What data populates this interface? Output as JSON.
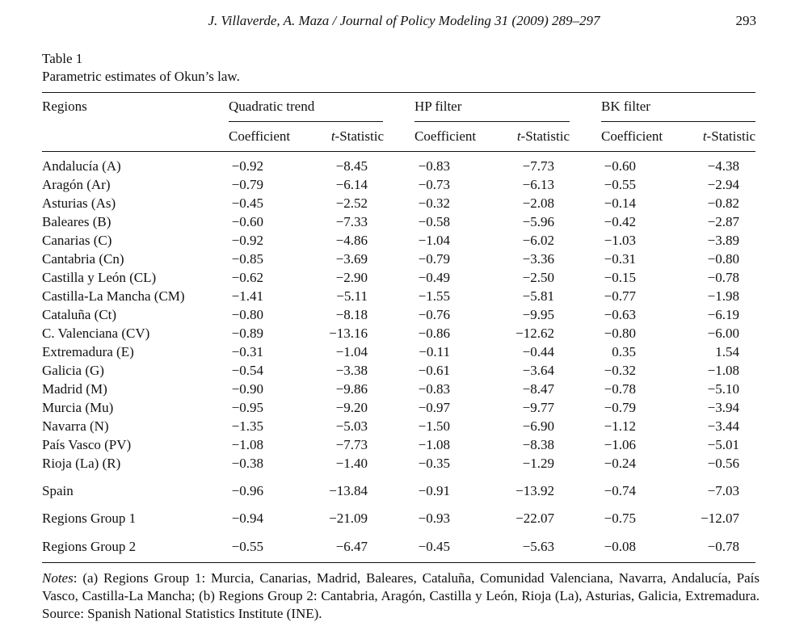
{
  "running_head": {
    "journal": "J. Villaverde, A. Maza / Journal of Policy Modeling 31 (2009) 289–297",
    "page_number": "293"
  },
  "table": {
    "label": "Table 1",
    "title": "Parametric estimates of Okun’s law.",
    "stub_header": "Regions",
    "groups": [
      "Quadratic trend",
      "HP filter",
      "BK filter"
    ],
    "subheaders": {
      "coefficient": "Coefficient",
      "t_prefix": "t",
      "t_suffix": "-Statistic"
    },
    "rows": [
      {
        "region": "Andalucía (A)",
        "values": [
          "−0.92",
          "−8.45",
          "−0.83",
          "−7.73",
          "−0.60",
          "−4.38"
        ]
      },
      {
        "region": "Aragón (Ar)",
        "values": [
          "−0.79",
          "−6.14",
          "−0.73",
          "−6.13",
          "−0.55",
          "−2.94"
        ]
      },
      {
        "region": "Asturias (As)",
        "values": [
          "−0.45",
          "−2.52",
          "−0.32",
          "−2.08",
          "−0.14",
          "−0.82"
        ]
      },
      {
        "region": "Baleares (B)",
        "values": [
          "−0.60",
          "−7.33",
          "−0.58",
          "−5.96",
          "−0.42",
          "−2.87"
        ]
      },
      {
        "region": "Canarias (C)",
        "values": [
          "−0.92",
          "−4.86",
          "−1.04",
          "−6.02",
          "−1.03",
          "−3.89"
        ]
      },
      {
        "region": "Cantabria (Cn)",
        "values": [
          "−0.85",
          "−3.69",
          "−0.79",
          "−3.36",
          "−0.31",
          "−0.80"
        ]
      },
      {
        "region": "Castilla y León (CL)",
        "values": [
          "−0.62",
          "−2.90",
          "−0.49",
          "−2.50",
          "−0.15",
          "−0.78"
        ]
      },
      {
        "region": "Castilla-La Mancha (CM)",
        "values": [
          "−1.41",
          "−5.11",
          "−1.55",
          "−5.81",
          "−0.77",
          "−1.98"
        ]
      },
      {
        "region": "Cataluña (Ct)",
        "values": [
          "−0.80",
          "−8.18",
          "−0.76",
          "−9.95",
          "−0.63",
          "−6.19"
        ]
      },
      {
        "region": "C. Valenciana (CV)",
        "values": [
          "−0.89",
          "−13.16",
          "−0.86",
          "−12.62",
          "−0.80",
          "−6.00"
        ]
      },
      {
        "region": "Extremadura (E)",
        "values": [
          "−0.31",
          "−1.04",
          "−0.11",
          "−0.44",
          "0.35",
          "1.54"
        ]
      },
      {
        "region": "Galicia (G)",
        "values": [
          "−0.54",
          "−3.38",
          "−0.61",
          "−3.64",
          "−0.32",
          "−1.08"
        ]
      },
      {
        "region": "Madrid (M)",
        "values": [
          "−0.90",
          "−9.86",
          "−0.83",
          "−8.47",
          "−0.78",
          "−5.10"
        ]
      },
      {
        "region": "Murcia (Mu)",
        "values": [
          "−0.95",
          "−9.20",
          "−0.97",
          "−9.77",
          "−0.79",
          "−3.94"
        ]
      },
      {
        "region": "Navarra (N)",
        "values": [
          "−1.35",
          "−5.03",
          "−1.50",
          "−6.90",
          "−1.12",
          "−3.44"
        ]
      },
      {
        "region": "País Vasco (PV)",
        "values": [
          "−1.08",
          "−7.73",
          "−1.08",
          "−8.38",
          "−1.06",
          "−5.01"
        ]
      },
      {
        "region": "Rioja (La) (R)",
        "values": [
          "−0.38",
          "−1.40",
          "−0.35",
          "−1.29",
          "−0.24",
          "−0.56"
        ]
      },
      {
        "region": "Spain",
        "values": [
          "−0.96",
          "−13.84",
          "−0.91",
          "−13.92",
          "−0.74",
          "−7.03"
        ]
      },
      {
        "region": "Regions Group 1",
        "values": [
          "−0.94",
          "−21.09",
          "−0.93",
          "−22.07",
          "−0.75",
          "−12.07"
        ]
      },
      {
        "region": "Regions Group 2",
        "values": [
          "−0.55",
          "−6.47",
          "−0.45",
          "−5.63",
          "−0.08",
          "−0.78"
        ]
      }
    ]
  },
  "notes": {
    "label": "Notes",
    "text": ": (a) Regions Group 1: Murcia, Canarias, Madrid, Baleares, Cataluña, Comunidad Valenciana, Navarra, Andalucía, País Vasco, Castilla-La Mancha; (b) Regions Group 2: Cantabria, Aragón, Castilla y León, Rioja (La), Asturias, Galicia, Extremadura. Source: Spanish National Statistics Institute (INE)."
  }
}
